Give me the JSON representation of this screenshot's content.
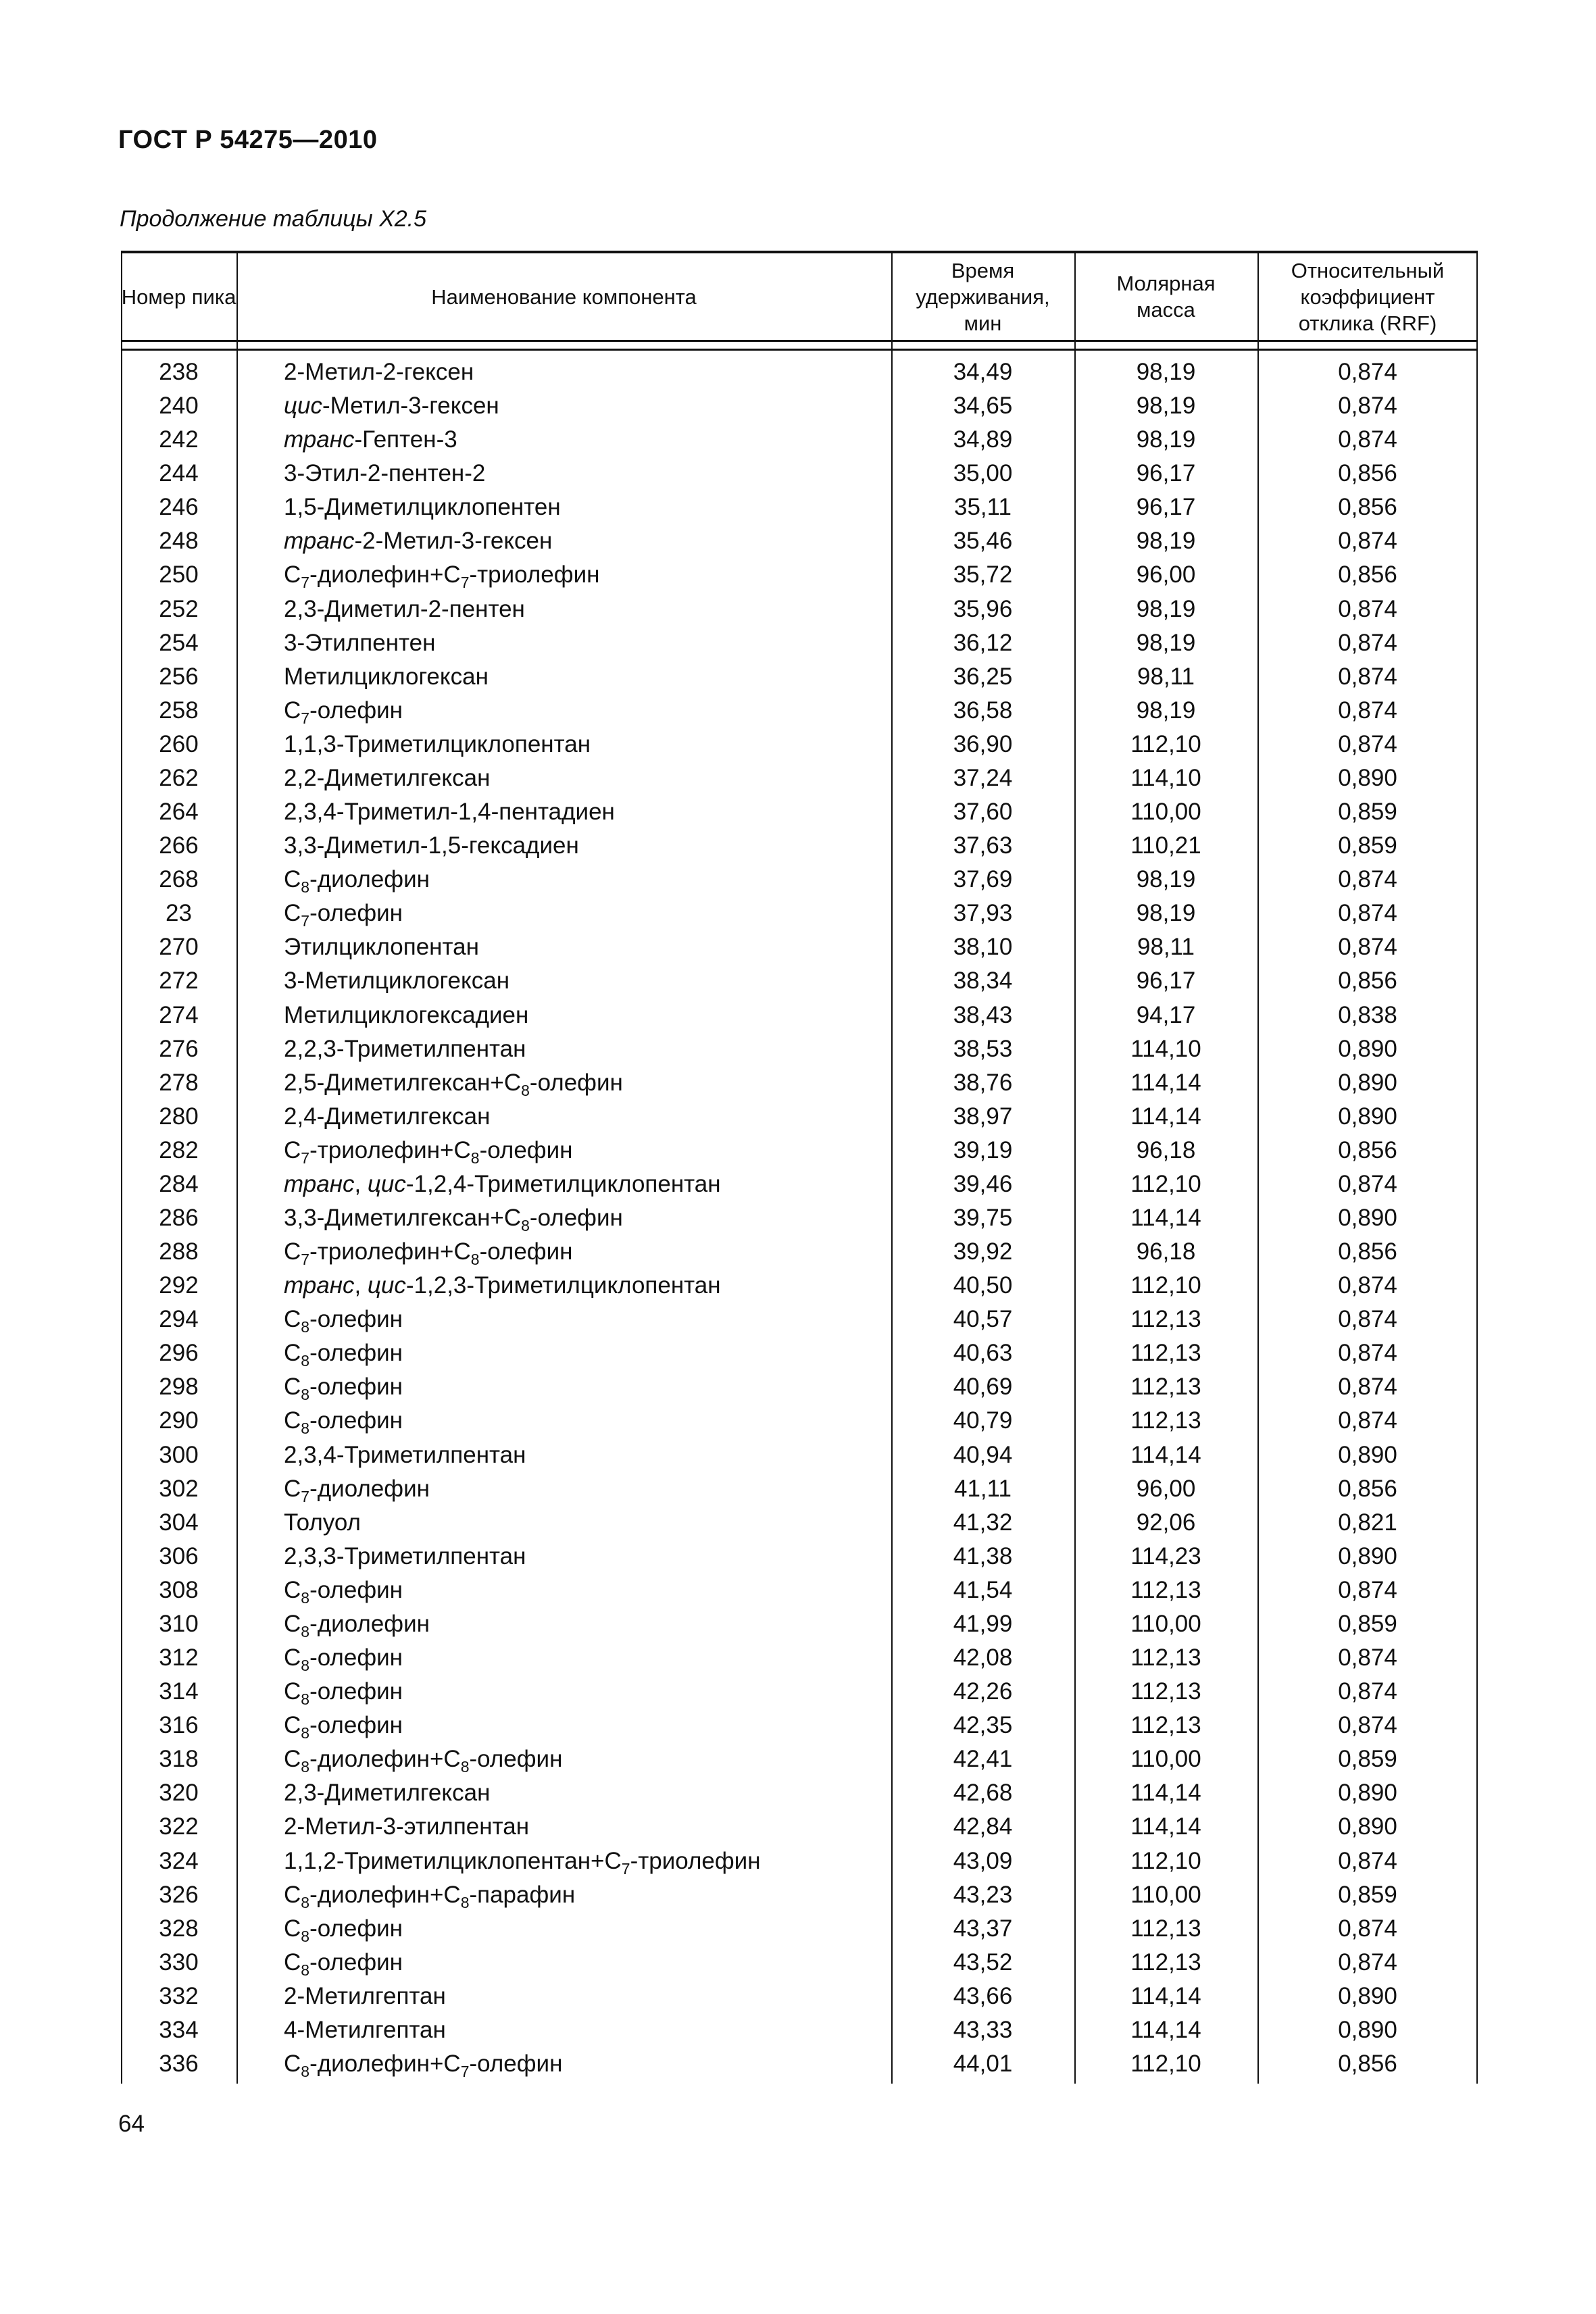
{
  "header": {
    "doc_title": "ГОСТ Р 54275—2010",
    "caption": "Продолжение таблицы Х2.5"
  },
  "table": {
    "columns": [
      "Номер пика",
      "Наименование компонента",
      "Время удерживания, мин",
      "Молярная масса",
      "Относительный коэффициент отклика (RRF)"
    ],
    "rows": [
      [
        "238",
        [
          "2-Метил-2-гексен"
        ],
        "34,49",
        "98,19",
        "0,874"
      ],
      [
        "240",
        [
          {
            "it": "цис"
          },
          "-Метил-3-гексен"
        ],
        "34,65",
        "98,19",
        "0,874"
      ],
      [
        "242",
        [
          {
            "it": "транс"
          },
          "-Гептен-3"
        ],
        "34,89",
        "98,19",
        "0,874"
      ],
      [
        "244",
        [
          "3-Этил-2-пентен-2"
        ],
        "35,00",
        "96,17",
        "0,856"
      ],
      [
        "246",
        [
          "1,5-Диметилциклопентен"
        ],
        "35,11",
        "96,17",
        "0,856"
      ],
      [
        "248",
        [
          {
            "it": "транс"
          },
          "-2-Метил-3-гексен"
        ],
        "35,46",
        "98,19",
        "0,874"
      ],
      [
        "250",
        [
          "C",
          {
            "sub": "7"
          },
          "-диолефин+C",
          {
            "sub": "7"
          },
          "-триолефин"
        ],
        "35,72",
        "96,00",
        "0,856"
      ],
      [
        "252",
        [
          "2,3-Диметил-2-пентен"
        ],
        "35,96",
        "98,19",
        "0,874"
      ],
      [
        "254",
        [
          "3-Этилпентен"
        ],
        "36,12",
        "98,19",
        "0,874"
      ],
      [
        "256",
        [
          "Метилциклогексан"
        ],
        "36,25",
        "98,11",
        "0,874"
      ],
      [
        "258",
        [
          "C",
          {
            "sub": "7"
          },
          "-олефин"
        ],
        "36,58",
        "98,19",
        "0,874"
      ],
      [
        "260",
        [
          "1,1,3-Триметилциклопентан"
        ],
        "36,90",
        "112,10",
        "0,874"
      ],
      [
        "262",
        [
          "2,2-Диметилгексан"
        ],
        "37,24",
        "114,10",
        "0,890"
      ],
      [
        "264",
        [
          "2,3,4-Триметил-1,4-пентадиен"
        ],
        "37,60",
        "110,00",
        "0,859"
      ],
      [
        "266",
        [
          "3,3-Диметил-1,5-гексадиен"
        ],
        "37,63",
        "110,21",
        "0,859"
      ],
      [
        "268",
        [
          "C",
          {
            "sub": "8"
          },
          "-диолефин"
        ],
        "37,69",
        "98,19",
        "0,874"
      ],
      [
        "23",
        [
          "C",
          {
            "sub": "7"
          },
          "-олефин"
        ],
        "37,93",
        "98,19",
        "0,874"
      ],
      [
        "270",
        [
          "Этилциклопентан"
        ],
        "38,10",
        "98,11",
        "0,874"
      ],
      [
        "272",
        [
          "3-Метилциклогексан"
        ],
        "38,34",
        "96,17",
        "0,856"
      ],
      [
        "274",
        [
          "Метилциклогексадиен"
        ],
        "38,43",
        "94,17",
        "0,838"
      ],
      [
        "276",
        [
          "2,2,3-Триметилпентан"
        ],
        "38,53",
        "114,10",
        "0,890"
      ],
      [
        "278",
        [
          "2,5-Диметилгексан+C",
          {
            "sub": "8"
          },
          "-олефин"
        ],
        "38,76",
        "114,14",
        "0,890"
      ],
      [
        "280",
        [
          "2,4-Диметилгексан"
        ],
        "38,97",
        "114,14",
        "0,890"
      ],
      [
        "282",
        [
          "C",
          {
            "sub": "7"
          },
          "-триолефин+C",
          {
            "sub": "8"
          },
          "-олефин"
        ],
        "39,19",
        "96,18",
        "0,856"
      ],
      [
        "284",
        [
          {
            "it": "транс"
          },
          ", ",
          {
            "it": "цис"
          },
          "-1,2,4-Триметилциклопентан"
        ],
        "39,46",
        "112,10",
        "0,874"
      ],
      [
        "286",
        [
          "3,3-Диметилгексан+C",
          {
            "sub": "8"
          },
          "-олефин"
        ],
        "39,75",
        "114,14",
        "0,890"
      ],
      [
        "288",
        [
          "C",
          {
            "sub": "7"
          },
          "-триолефин+C",
          {
            "sub": "8"
          },
          "-олефин"
        ],
        "39,92",
        "96,18",
        "0,856"
      ],
      [
        "292",
        [
          {
            "it": "транс"
          },
          ", ",
          {
            "it": "цис"
          },
          "-1,2,3-Триметилциклопентан"
        ],
        "40,50",
        "112,10",
        "0,874"
      ],
      [
        "294",
        [
          "C",
          {
            "sub": "8"
          },
          "-олефин"
        ],
        "40,57",
        "112,13",
        "0,874"
      ],
      [
        "296",
        [
          "C",
          {
            "sub": "8"
          },
          "-олефин"
        ],
        "40,63",
        "112,13",
        "0,874"
      ],
      [
        "298",
        [
          "C",
          {
            "sub": "8"
          },
          "-олефин"
        ],
        "40,69",
        "112,13",
        "0,874"
      ],
      [
        "290",
        [
          "C",
          {
            "sub": "8"
          },
          "-олефин"
        ],
        "40,79",
        "112,13",
        "0,874"
      ],
      [
        "300",
        [
          "2,3,4-Триметилпентан"
        ],
        "40,94",
        "114,14",
        "0,890"
      ],
      [
        "302",
        [
          "C",
          {
            "sub": "7"
          },
          "-диолефин"
        ],
        "41,11",
        "96,00",
        "0,856"
      ],
      [
        "304",
        [
          "Толуол"
        ],
        "41,32",
        "92,06",
        "0,821"
      ],
      [
        "306",
        [
          "2,3,3-Триметилпентан"
        ],
        "41,38",
        "114,23",
        "0,890"
      ],
      [
        "308",
        [
          "C",
          {
            "sub": "8"
          },
          "-олефин"
        ],
        "41,54",
        "112,13",
        "0,874"
      ],
      [
        "310",
        [
          "C",
          {
            "sub": "8"
          },
          "-диолефин"
        ],
        "41,99",
        "110,00",
        "0,859"
      ],
      [
        "312",
        [
          "C",
          {
            "sub": "8"
          },
          "-олефин"
        ],
        "42,08",
        "112,13",
        "0,874"
      ],
      [
        "314",
        [
          "C",
          {
            "sub": "8"
          },
          "-олефин"
        ],
        "42,26",
        "112,13",
        "0,874"
      ],
      [
        "316",
        [
          "C",
          {
            "sub": "8"
          },
          "-олефин"
        ],
        "42,35",
        "112,13",
        "0,874"
      ],
      [
        "318",
        [
          "C",
          {
            "sub": "8"
          },
          "-диолефин+C",
          {
            "sub": "8"
          },
          "-олефин"
        ],
        "42,41",
        "110,00",
        "0,859"
      ],
      [
        "320",
        [
          "2,3-Диметилгексан"
        ],
        "42,68",
        "114,14",
        "0,890"
      ],
      [
        "322",
        [
          "2-Метил-3-этилпентан"
        ],
        "42,84",
        "114,14",
        "0,890"
      ],
      [
        "324",
        [
          "1,1,2-Триметилциклопентан+C",
          {
            "sub": "7"
          },
          "-триолефин"
        ],
        "43,09",
        "112,10",
        "0,874"
      ],
      [
        "326",
        [
          "C",
          {
            "sub": "8"
          },
          "-диолефин+C",
          {
            "sub": "8"
          },
          "-парафин"
        ],
        "43,23",
        "110,00",
        "0,859"
      ],
      [
        "328",
        [
          "C",
          {
            "sub": "8"
          },
          "-олефин"
        ],
        "43,37",
        "112,13",
        "0,874"
      ],
      [
        "330",
        [
          "C",
          {
            "sub": "8"
          },
          "-олефин"
        ],
        "43,52",
        "112,13",
        "0,874"
      ],
      [
        "332",
        [
          "2-Метилгептан"
        ],
        "43,66",
        "114,14",
        "0,890"
      ],
      [
        "334",
        [
          "4-Метилгептан"
        ],
        "43,33",
        "114,14",
        "0,890"
      ],
      [
        "336",
        [
          "C",
          {
            "sub": "8"
          },
          "-диолефин+C",
          {
            "sub": "7"
          },
          "-олефин"
        ],
        "44,01",
        "112,10",
        "0,856"
      ]
    ]
  },
  "footer": {
    "page_number": "64"
  }
}
